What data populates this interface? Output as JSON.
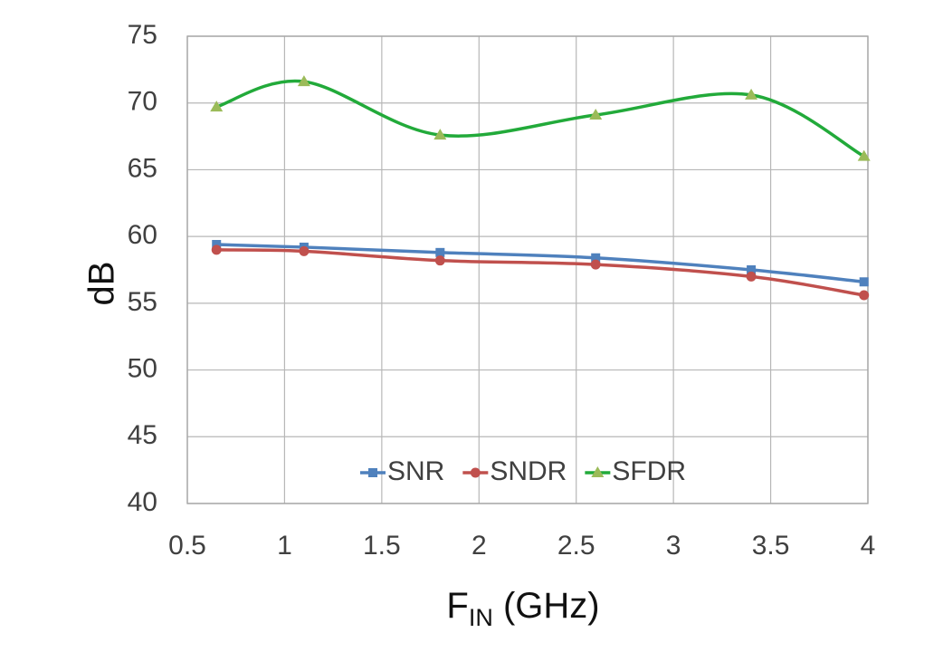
{
  "chart_data": {
    "type": "line",
    "title": "",
    "xlabel_main": "F",
    "xlabel_sub": "IN",
    "xlabel_rest": " (GHz)",
    "ylabel": "dB",
    "xlim": [
      0.5,
      4
    ],
    "ylim": [
      40,
      75
    ],
    "xticks": [
      "0.5",
      "1",
      "1.5",
      "2",
      "2.5",
      "3",
      "3.5",
      "4"
    ],
    "yticks": [
      "40",
      "45",
      "50",
      "55",
      "60",
      "65",
      "70",
      "75"
    ],
    "grid": true,
    "legend_position": "bottom-center",
    "x": [
      0.65,
      1.1,
      1.8,
      2.6,
      3.4,
      3.98
    ],
    "series": [
      {
        "name": "SNR",
        "values": [
          59.4,
          59.2,
          58.8,
          58.4,
          57.5,
          56.6
        ],
        "color": "#4f81bd",
        "marker": "square"
      },
      {
        "name": "SNDR",
        "values": [
          59.0,
          58.9,
          58.2,
          57.9,
          57.0,
          55.6
        ],
        "color": "#c0504d",
        "marker": "circle"
      },
      {
        "name": "SFDR",
        "values": [
          69.7,
          71.6,
          67.6,
          69.1,
          70.6,
          66.0
        ],
        "color": "#9bbb59",
        "line_color": "#22aa3a",
        "marker": "triangle"
      }
    ]
  }
}
